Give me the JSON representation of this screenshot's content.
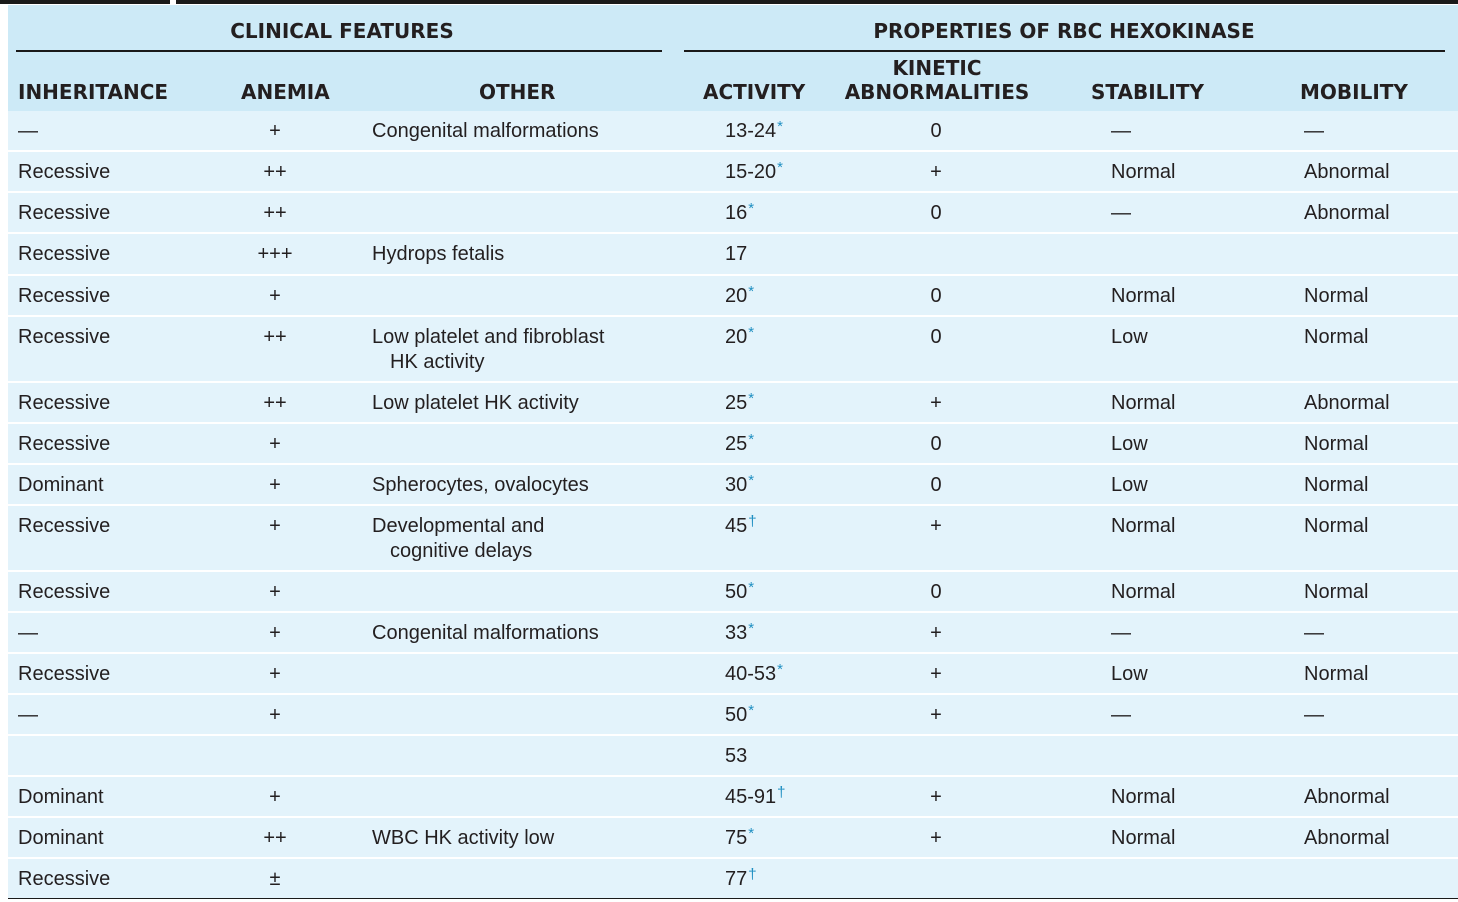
{
  "header": {
    "group_clinical": "CLINICAL FEATURES",
    "group_hexokinase": "PROPERTIES OF RBC HEXOKINASE",
    "col_inheritance": "INHERITANCE",
    "col_anemia": "ANEMIA",
    "col_other": "OTHER",
    "col_activity": "ACTIVITY",
    "col_kinetic_line1": "KINETIC",
    "col_kinetic_line2": "ABNORMALITIES",
    "col_stability": "STABILITY",
    "col_mobility": "MOBILITY"
  },
  "rows": [
    {
      "inheritance": "—",
      "anemia": "+",
      "other": [
        "Congenital malformations"
      ],
      "activity": "13-24",
      "mark": "*",
      "kinetic": "0",
      "stability": "—",
      "mobility": "—"
    },
    {
      "inheritance": "Recessive",
      "anemia": "++",
      "other": [],
      "activity": "15-20",
      "mark": "*",
      "kinetic": "+",
      "stability": "Normal",
      "mobility": "Abnormal"
    },
    {
      "inheritance": "Recessive",
      "anemia": "++",
      "other": [],
      "activity": "16",
      "mark": "*",
      "kinetic": "0",
      "stability": "—",
      "mobility": "Abnormal"
    },
    {
      "inheritance": "Recessive",
      "anemia": "+++",
      "other": [
        "Hydrops fetalis"
      ],
      "activity": "17",
      "mark": "",
      "kinetic": "",
      "stability": "",
      "mobility": ""
    },
    {
      "inheritance": "Recessive",
      "anemia": "+",
      "other": [],
      "activity": "20",
      "mark": "*",
      "kinetic": "0",
      "stability": "Normal",
      "mobility": "Normal"
    },
    {
      "inheritance": "Recessive",
      "anemia": "++",
      "other": [
        "Low platelet and fibroblast",
        "HK activity"
      ],
      "activity": "20",
      "mark": "*",
      "kinetic": "0",
      "stability": "Low",
      "mobility": "Normal"
    },
    {
      "inheritance": "Recessive",
      "anemia": "++",
      "other": [
        "Low platelet HK activity"
      ],
      "activity": "25",
      "mark": "*",
      "kinetic": "+",
      "stability": "Normal",
      "mobility": "Abnormal"
    },
    {
      "inheritance": "Recessive",
      "anemia": "+",
      "other": [],
      "activity": "25",
      "mark": "*",
      "kinetic": "0",
      "stability": "Low",
      "mobility": "Normal"
    },
    {
      "inheritance": "Dominant",
      "anemia": "+",
      "other": [
        "Spherocytes, ovalocytes"
      ],
      "activity": "30",
      "mark": "*",
      "kinetic": "0",
      "stability": "Low",
      "mobility": "Normal"
    },
    {
      "inheritance": "Recessive",
      "anemia": "+",
      "other": [
        "Developmental and",
        "cognitive delays"
      ],
      "activity": "45",
      "mark": "†",
      "kinetic": "+",
      "stability": "Normal",
      "mobility": "Normal"
    },
    {
      "inheritance": "Recessive",
      "anemia": "+",
      "other": [],
      "activity": "50",
      "mark": "*",
      "kinetic": "0",
      "stability": "Normal",
      "mobility": "Normal"
    },
    {
      "inheritance": "—",
      "anemia": "+",
      "other": [
        "Congenital malformations"
      ],
      "activity": "33",
      "mark": "*",
      "kinetic": "+",
      "stability": "—",
      "mobility": "—"
    },
    {
      "inheritance": "Recessive",
      "anemia": "+",
      "other": [],
      "activity": "40-53",
      "mark": "*",
      "kinetic": "+",
      "stability": "Low",
      "mobility": "Normal"
    },
    {
      "inheritance": "—",
      "anemia": "+",
      "other": [],
      "activity": "50",
      "mark": "*",
      "kinetic": "+",
      "stability": "—",
      "mobility": "—"
    },
    {
      "inheritance": "",
      "anemia": "",
      "other": [],
      "activity": "53",
      "mark": "",
      "kinetic": "",
      "stability": "",
      "mobility": ""
    },
    {
      "inheritance": "Dominant",
      "anemia": "+",
      "other": [],
      "activity": "45-91",
      "mark": "†",
      "kinetic": "+",
      "stability": "Normal",
      "mobility": "Abnormal"
    },
    {
      "inheritance": "Dominant",
      "anemia": "++",
      "other": [
        "WBC HK activity low"
      ],
      "activity": "75",
      "mark": "*",
      "kinetic": "+",
      "stability": "Normal",
      "mobility": "Abnormal"
    },
    {
      "inheritance": "Recessive",
      "anemia": "±",
      "other": [],
      "activity": "77",
      "mark": "†",
      "kinetic": "",
      "stability": "",
      "mobility": ""
    }
  ]
}
